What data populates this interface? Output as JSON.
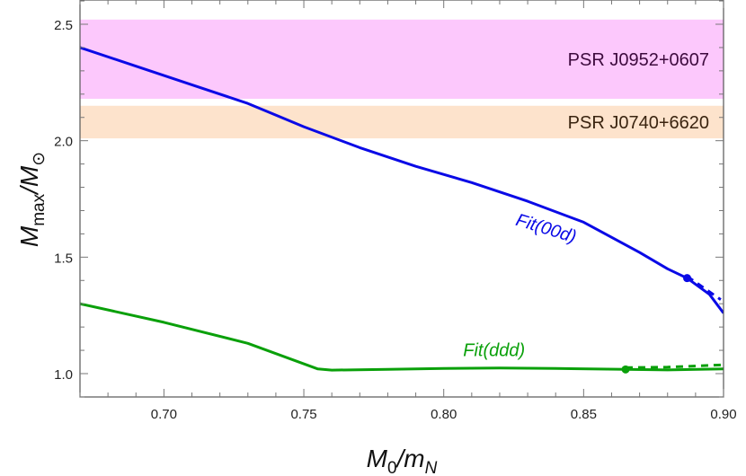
{
  "chart_data": {
    "type": "line",
    "title": "",
    "xlabel": "M_0/m_N",
    "ylabel": "M_max/M_⊙",
    "xlim": [
      0.67,
      0.9
    ],
    "ylim": [
      0.89,
      2.62
    ],
    "x_ticks": [
      0.7,
      0.75,
      0.8,
      0.85,
      0.9
    ],
    "x_tick_labels": [
      "0.70",
      "0.75",
      "0.80",
      "0.85",
      "0.90"
    ],
    "y_ticks": [
      1.0,
      1.5,
      2.0,
      2.5
    ],
    "y_tick_labels": [
      "1.0",
      "1.5",
      "2.0",
      "2.5"
    ],
    "grid": false,
    "bands": [
      {
        "name": "PSR J0952+0607",
        "ymin": 2.18,
        "ymax": 2.52,
        "color": "#fcc8fc",
        "text_color": "#3d0a3d"
      },
      {
        "name": "PSR J0740+6620",
        "ymin": 2.01,
        "ymax": 2.15,
        "color": "#fde3cc",
        "text_color": "#3a2410"
      }
    ],
    "series": [
      {
        "name": "Fit(00d)",
        "color": "#0a0ae6",
        "x": [
          0.67,
          0.69,
          0.71,
          0.73,
          0.75,
          0.77,
          0.79,
          0.81,
          0.83,
          0.85,
          0.87,
          0.88,
          0.887,
          0.895,
          0.9
        ],
        "y": [
          2.4,
          2.32,
          2.24,
          2.16,
          2.06,
          1.97,
          1.89,
          1.82,
          1.74,
          1.65,
          1.52,
          1.45,
          1.41,
          1.34,
          1.26
        ],
        "marker": {
          "x": 0.887,
          "y": 1.41
        },
        "dashed_tail": {
          "x": [
            0.887,
            0.893,
            0.899
          ],
          "y": [
            1.41,
            1.36,
            1.31
          ]
        }
      },
      {
        "name": "Fit(ddd)",
        "color": "#0aa00a",
        "x": [
          0.67,
          0.7,
          0.73,
          0.755,
          0.76,
          0.78,
          0.8,
          0.82,
          0.84,
          0.865,
          0.88,
          0.9
        ],
        "y": [
          1.3,
          1.22,
          1.13,
          1.02,
          1.015,
          1.018,
          1.022,
          1.024,
          1.022,
          1.018,
          1.016,
          1.02
        ],
        "marker": {
          "x": 0.865,
          "y": 1.018
        },
        "dashed_tail": {
          "x": [
            0.865,
            0.88,
            0.9
          ],
          "y": [
            1.018,
            1.02,
            1.03
          ]
        }
      }
    ],
    "annotations": [
      {
        "text": "Fit(00d)",
        "x": 0.836,
        "y": 1.6,
        "rotation": 17,
        "color": "#0a0ae6"
      },
      {
        "text": "Fit(ddd)",
        "x": 0.818,
        "y": 1.075,
        "rotation": 0,
        "color": "#0aa00a"
      }
    ],
    "legend": null
  },
  "labels": {
    "xlabel_main": "M",
    "xlabel_sub0": "0",
    "xlabel_slash": "/m",
    "xlabel_sub1": "N",
    "ylabel_main": "M",
    "ylabel_sub0": "max",
    "ylabel_slash": "/M",
    "ylabel_sub1": "⊙"
  }
}
